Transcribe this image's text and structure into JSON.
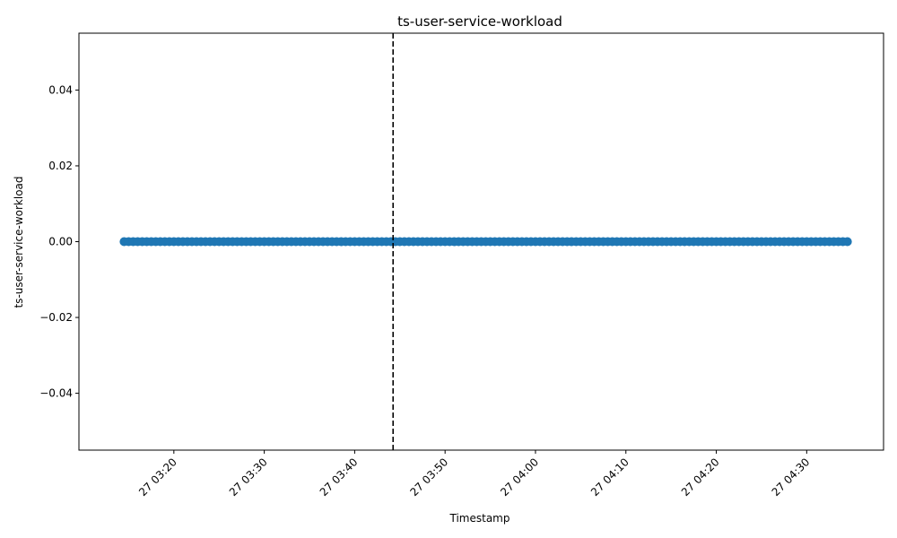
{
  "chart_data": {
    "type": "scatter",
    "title": "ts-user-service-workload",
    "xlabel": "Timestamp",
    "ylabel": "ts-user-service-workload",
    "x_start": "27 03:14:30",
    "x_end": "27 04:34:30",
    "x_step_seconds": 30,
    "y_constant": 0.0,
    "xlim": [
      "27 03:09:30",
      "27 04:38:30"
    ],
    "ylim": [
      -0.055,
      0.055
    ],
    "x_ticks": [
      "27 03:20",
      "27 03:30",
      "27 03:40",
      "27 03:50",
      "27 04:00",
      "27 04:10",
      "27 04:20",
      "27 04:30"
    ],
    "y_ticks": [
      "−0.04",
      "−0.02",
      "0.00",
      "0.02",
      "0.04"
    ],
    "y_tick_values": [
      -0.04,
      -0.02,
      0.0,
      0.02,
      0.04
    ],
    "vline_x": "27 03:44:15",
    "vline_style": "dashed",
    "marker_color": "#1f77b4",
    "vline_color": "#000000",
    "grid": false,
    "legend": "none"
  }
}
